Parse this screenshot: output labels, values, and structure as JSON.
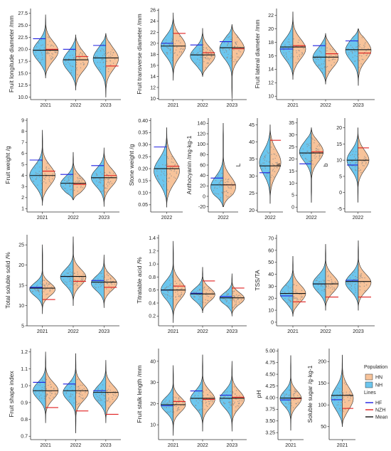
{
  "colors": {
    "HN": "#f7c39a",
    "NH": "#6cc6ee",
    "HF": "#1f1fe0",
    "NZH": "#e02020",
    "Mean": "#111111",
    "outline": "#333333",
    "point": "#8a8a8a"
  },
  "legend": {
    "population_title": "Population",
    "population": [
      {
        "key": "HN",
        "label": "HN"
      },
      {
        "key": "NH",
        "label": "NH"
      }
    ],
    "lines_title": "Lines",
    "lines": [
      {
        "key": "HF",
        "label": "HF"
      },
      {
        "key": "NZH",
        "label": "NZH"
      },
      {
        "key": "Mean",
        "label": "Mean"
      }
    ]
  },
  "chart_data": [
    {
      "type": "violin",
      "ylabel": "Fruit longitude diameter /mm",
      "ylim": [
        9.5,
        28.5
      ],
      "yticks": [
        10.0,
        12.5,
        15.0,
        17.5,
        20.0,
        22.5,
        25.0,
        27.5
      ],
      "tick_decimals": 1,
      "groups": [
        {
          "label": "2021",
          "mean": 19.8,
          "hf": 22.2,
          "nzh": 20.0,
          "center": 19.6,
          "min": 14.0,
          "max": 27.2,
          "spread": 2.0
        },
        {
          "label": "2022",
          "mean": 17.8,
          "hf": 20.0,
          "nzh": 18.5,
          "center": 17.5,
          "min": 11.5,
          "max": 23.0,
          "spread": 2.0
        },
        {
          "label": "2023",
          "mean": 18.2,
          "hf": 20.8,
          "nzh": 16.5,
          "center": 18.0,
          "min": 10.0,
          "max": 23.3,
          "spread": 2.2
        }
      ]
    },
    {
      "type": "violin",
      "ylabel": "Fruit transverse diameter /mm",
      "ylim": [
        9.8,
        26.3
      ],
      "yticks": [
        10,
        12,
        14,
        16,
        18,
        20,
        22,
        24,
        26
      ],
      "tick_decimals": 0,
      "groups": [
        {
          "label": "2021",
          "mean": 19.5,
          "hf": 20.0,
          "nzh": 21.8,
          "center": 19.5,
          "min": 13.3,
          "max": 25.5,
          "spread": 1.8
        },
        {
          "label": "2022",
          "mean": 17.9,
          "hf": 19.7,
          "nzh": 18.3,
          "center": 17.7,
          "min": 14.0,
          "max": 22.7,
          "spread": 1.5
        },
        {
          "label": "2023",
          "mean": 19.2,
          "hf": 20.3,
          "nzh": 19.0,
          "center": 19.0,
          "min": 10.0,
          "max": 23.4,
          "spread": 1.8
        }
      ]
    },
    {
      "type": "violin",
      "ylabel": "Fruit lateral diameter /mm",
      "ylim": [
        9.5,
        23
      ],
      "yticks": [
        10,
        12,
        14,
        16,
        18,
        20,
        22
      ],
      "tick_decimals": 0,
      "groups": [
        {
          "label": "2021",
          "mean": 17.3,
          "hf": 17.0,
          "nzh": 17.5,
          "center": 17.0,
          "min": 12.5,
          "max": 22.5,
          "spread": 1.5
        },
        {
          "label": "2022",
          "mean": 15.8,
          "hf": 17.5,
          "nzh": 16.3,
          "center": 15.7,
          "min": 11.8,
          "max": 19.3,
          "spread": 1.4
        },
        {
          "label": "2023",
          "mean": 16.9,
          "hf": 18.2,
          "nzh": 16.4,
          "center": 16.8,
          "min": 11.6,
          "max": 20.0,
          "spread": 1.5
        }
      ]
    },
    {
      "type": "violin",
      "ylabel": "Fruit weight /g",
      "ylim": [
        0.7,
        9.2
      ],
      "yticks": [
        1,
        2,
        3,
        4,
        5,
        6,
        7,
        8,
        9
      ],
      "tick_decimals": 0,
      "groups": [
        {
          "label": "2021",
          "mean": 4.0,
          "hf": 5.4,
          "nzh": 4.4,
          "center": 4.0,
          "min": 1.3,
          "max": 8.1,
          "spread": 0.9
        },
        {
          "label": "2022",
          "mean": 3.3,
          "hf": 4.1,
          "nzh": 3.2,
          "center": 3.2,
          "min": 1.8,
          "max": 6.1,
          "spread": 0.7
        },
        {
          "label": "2023",
          "mean": 3.8,
          "hf": 4.9,
          "nzh": 4.0,
          "center": 3.8,
          "min": 1.2,
          "max": 6.5,
          "spread": 0.8
        }
      ]
    },
    {
      "type": "violin",
      "ylabel": "Stone weight /g",
      "ylim": [
        0.02,
        0.41
      ],
      "yticks": [
        0.05,
        0.1,
        0.15,
        0.2,
        0.25,
        0.3,
        0.35,
        0.4
      ],
      "tick_decimals": 2,
      "groups": [
        {
          "label": "2022",
          "mean": 0.2,
          "hf": 0.29,
          "nzh": 0.21,
          "center": 0.19,
          "min": 0.04,
          "max": 0.37,
          "spread": 0.05
        }
      ]
    },
    {
      "type": "violin",
      "ylabel": "Anthocyanin /mg·kg-1",
      "ylim": [
        -30,
        150
      ],
      "yticks": [
        -20,
        0,
        20,
        40,
        60,
        80,
        100,
        120,
        140
      ],
      "tick_decimals": 0,
      "groups": [
        {
          "label": "2022",
          "mean": 22,
          "hf": 35,
          "nzh": 22,
          "center": 18,
          "min": -20,
          "max": 140,
          "spread": 20
        }
      ]
    },
    {
      "type": "violin",
      "ylabel": "L",
      "ylim": [
        19.5,
        47
      ],
      "yticks": [
        20,
        25,
        30,
        35,
        40,
        45
      ],
      "tick_decimals": 0,
      "groups": [
        {
          "label": "2022",
          "mean": 33,
          "hf": 31,
          "nzh": 40.5,
          "center": 34,
          "min": 22,
          "max": 45,
          "spread": 3.5
        }
      ]
    },
    {
      "type": "violin",
      "ylabel": "a",
      "ylim": [
        -2,
        37
      ],
      "yticks": [
        0,
        5,
        10,
        15,
        20,
        25,
        30,
        35
      ],
      "tick_decimals": 0,
      "groups": [
        {
          "label": "2022",
          "mean": 22.5,
          "hf": 18,
          "nzh": 23,
          "center": 23,
          "min": 2,
          "max": 33,
          "spread": 4
        }
      ]
    },
    {
      "type": "violin",
      "ylabel": "b",
      "ylim": [
        -6,
        23
      ],
      "yticks": [
        -5,
        0,
        5,
        10,
        15,
        20
      ],
      "tick_decimals": 0,
      "groups": [
        {
          "label": "2022",
          "mean": 10,
          "hf": 8.5,
          "nzh": 13.8,
          "center": 10,
          "min": -3,
          "max": 20,
          "spread": 3
        }
      ]
    },
    {
      "type": "violin",
      "ylabel": "Total soluble solid /%",
      "ylim": [
        5,
        27.5
      ],
      "yticks": [
        5,
        10,
        15,
        20,
        25
      ],
      "tick_decimals": 0,
      "groups": [
        {
          "label": "2021",
          "mean": 14.3,
          "hf": 14.5,
          "nzh": 11.5,
          "center": 14.0,
          "min": 8.0,
          "max": 25.0,
          "spread": 1.6
        },
        {
          "label": "2022",
          "mean": 17.2,
          "hf": 17.2,
          "nzh": 16.0,
          "center": 17.0,
          "min": 10.0,
          "max": 27.0,
          "spread": 2.0
        },
        {
          "label": "2023",
          "mean": 15.8,
          "hf": 16.2,
          "nzh": 14.5,
          "center": 15.5,
          "min": 9.5,
          "max": 22.5,
          "spread": 1.8
        }
      ]
    },
    {
      "type": "violin",
      "ylabel": "Titratable acid /%",
      "ylim": [
        0.05,
        1.45
      ],
      "yticks": [
        0.2,
        0.4,
        0.6,
        0.8,
        1.0,
        1.2,
        1.4
      ],
      "tick_decimals": 1,
      "groups": [
        {
          "label": "2021",
          "mean": 0.6,
          "hf": 0.6,
          "nzh": 0.66,
          "center": 0.6,
          "min": 0.1,
          "max": 1.35,
          "spread": 0.14
        },
        {
          "label": "2022",
          "mean": 0.54,
          "hf": 0.55,
          "nzh": 0.74,
          "center": 0.53,
          "min": 0.25,
          "max": 0.95,
          "spread": 0.1
        },
        {
          "label": "2023",
          "mean": 0.48,
          "hf": 0.5,
          "nzh": 0.63,
          "center": 0.47,
          "min": 0.2,
          "max": 0.85,
          "spread": 0.09
        }
      ]
    },
    {
      "type": "violin",
      "ylabel": "TSS/TA",
      "ylim": [
        -3,
        73
      ],
      "yticks": [
        0,
        10,
        20,
        30,
        40,
        50,
        60,
        70
      ],
      "tick_decimals": 0,
      "groups": [
        {
          "label": "2021",
          "mean": 24,
          "hf": 22,
          "nzh": 17,
          "center": 24,
          "min": 5,
          "max": 55,
          "spread": 7
        },
        {
          "label": "2022",
          "mean": 32,
          "hf": 32,
          "nzh": 21,
          "center": 32,
          "min": 10,
          "max": 65,
          "spread": 7
        },
        {
          "label": "2023",
          "mean": 34,
          "hf": 35,
          "nzh": 21,
          "center": 33,
          "min": 10,
          "max": 68,
          "spread": 7
        }
      ]
    },
    {
      "type": "violin",
      "ylabel": "Fruit shape index",
      "ylim": [
        0.68,
        1.22
      ],
      "yticks": [
        0.7,
        0.8,
        0.9,
        1.0,
        1.1,
        1.2
      ],
      "tick_decimals": 1,
      "groups": [
        {
          "label": "2021",
          "mean": 0.97,
          "hf": 1.02,
          "nzh": 0.87,
          "center": 0.97,
          "min": 0.78,
          "max": 1.2,
          "spread": 0.05
        },
        {
          "label": "2022",
          "mean": 0.97,
          "hf": 1.01,
          "nzh": 0.85,
          "center": 0.96,
          "min": 0.72,
          "max": 1.19,
          "spread": 0.05
        },
        {
          "label": "2023",
          "mean": 0.96,
          "hf": 0.97,
          "nzh": 0.83,
          "center": 0.95,
          "min": 0.78,
          "max": 1.15,
          "spread": 0.05
        }
      ]
    },
    {
      "type": "violin",
      "ylabel": "Fruit stalk length /mm",
      "ylim": [
        3,
        46
      ],
      "yticks": [
        10,
        20,
        30,
        40
      ],
      "tick_decimals": 0,
      "groups": [
        {
          "label": "2021",
          "mean": 19.5,
          "hf": 19.0,
          "nzh": 21.0,
          "center": 19.5,
          "min": 5.0,
          "max": 38.0,
          "spread": 3.5
        },
        {
          "label": "2022",
          "mean": 22.5,
          "hf": 26.0,
          "nzh": 22.0,
          "center": 22.0,
          "min": 7.0,
          "max": 43.0,
          "spread": 4.0
        },
        {
          "label": "2023",
          "mean": 22.5,
          "hf": 24.0,
          "nzh": 23.0,
          "center": 22.0,
          "min": 7.0,
          "max": 40.0,
          "spread": 4.0
        }
      ]
    },
    {
      "type": "violin",
      "ylabel": "pH",
      "ylim": [
        3.1,
        5.05
      ],
      "yticks": [
        3.25,
        3.5,
        3.75,
        4.0,
        4.25,
        4.5,
        4.75,
        5.0
      ],
      "tick_decimals": 2,
      "groups": [
        {
          "label": "2021",
          "mean": 3.99,
          "hf": 3.95,
          "nzh": 3.98,
          "center": 3.98,
          "min": 3.3,
          "max": 4.9,
          "spread": 0.16
        }
      ]
    },
    {
      "type": "violin",
      "ylabel": "Soluble sugar /g·kg-1",
      "ylim": [
        20,
        230
      ],
      "yticks": [
        50,
        100,
        150,
        200
      ],
      "tick_decimals": 0,
      "groups": [
        {
          "label": "2021",
          "mean": 122,
          "hf": 112,
          "nzh": 92,
          "center": 115,
          "min": 50,
          "max": 215,
          "spread": 25
        }
      ]
    }
  ]
}
